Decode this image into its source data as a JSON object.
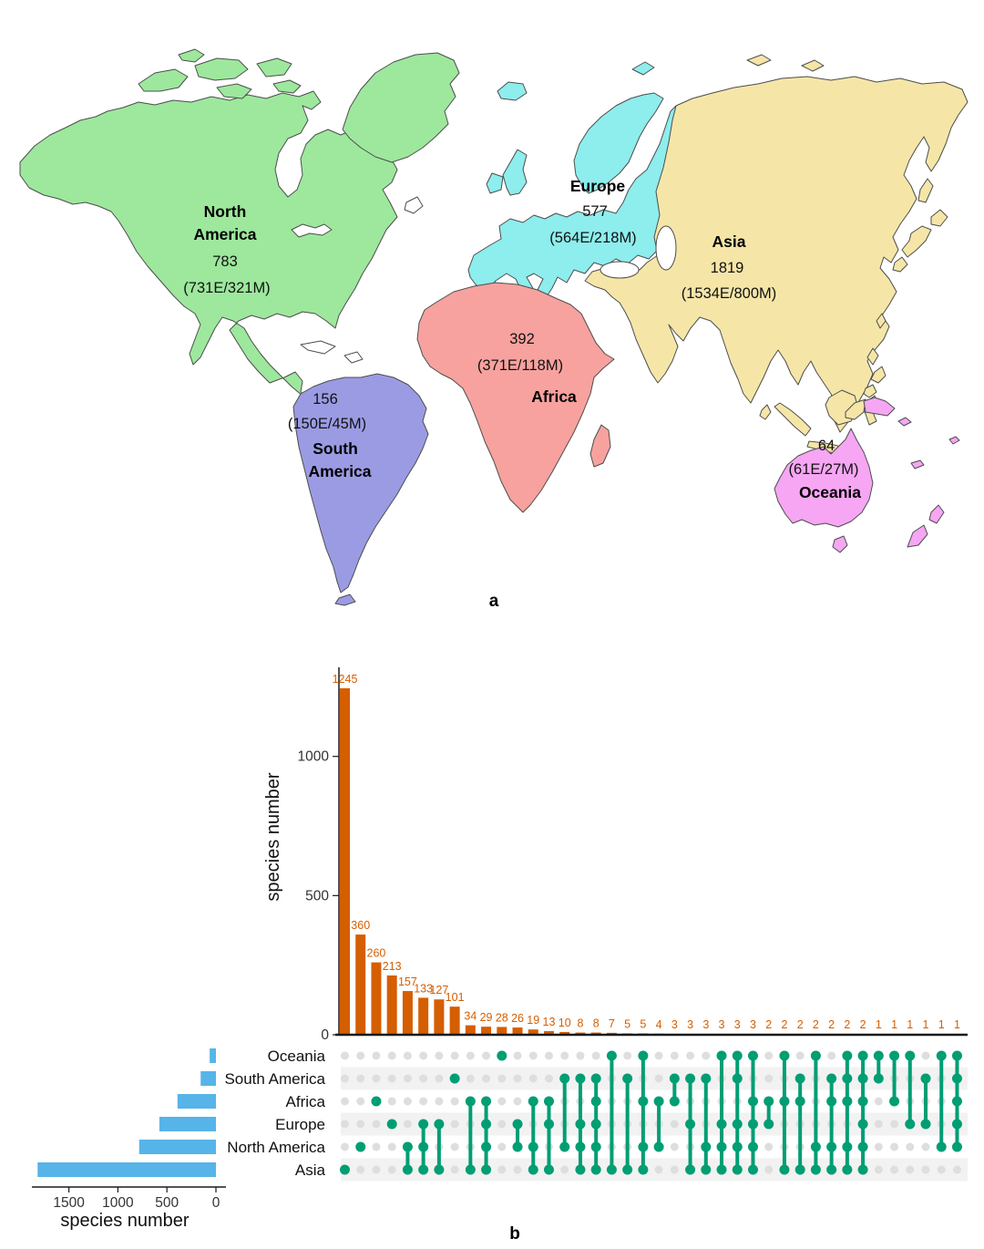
{
  "figure": {
    "panel_a_label": "a",
    "panel_b_label": "b"
  },
  "chart_data": [
    {
      "type": "map",
      "regions": [
        {
          "id": "north-america",
          "name": "North America",
          "name_lines": [
            "North",
            "America"
          ],
          "total": "783",
          "detail": "(731E/321M)",
          "color": "#9DE89D"
        },
        {
          "id": "south-america",
          "name": "South America",
          "name_lines": [
            "South",
            "America"
          ],
          "total": "156",
          "detail": "(150E/45M)",
          "color": "#9B9BE4"
        },
        {
          "id": "europe",
          "name": "Europe",
          "name_lines": [
            "Europe"
          ],
          "total": "577",
          "detail": "(564E/218M)",
          "color": "#8EEDED"
        },
        {
          "id": "africa",
          "name": "Africa",
          "name_lines": [
            "Africa"
          ],
          "total": "392",
          "detail": "(371E/118M)",
          "color": "#F7A29E"
        },
        {
          "id": "asia",
          "name": "Asia",
          "name_lines": [
            "Asia"
          ],
          "total": "1819",
          "detail": "(1534E/800M)",
          "color": "#F5E6A8"
        },
        {
          "id": "oceania",
          "name": "Oceania",
          "name_lines": [
            "Oceania"
          ],
          "total": "64",
          "detail": "(61E/27M)",
          "color": "#F6A6F3"
        }
      ]
    },
    {
      "type": "upset",
      "colors": {
        "bar_orange": "#D55E00",
        "bar_blue": "#56B4E9",
        "dot_green": "#009E73",
        "dot_gray": "#DEDEDE",
        "stripe": "#F2F2F2",
        "axis": "#1a1a1a",
        "tick_text": "#333333"
      },
      "set_order_top_to_bottom": [
        "Oceania",
        "South America",
        "Africa",
        "Europe",
        "North America",
        "Asia"
      ],
      "set_sizes": {
        "Oceania": 64,
        "South America": 156,
        "Africa": 392,
        "Europe": 577,
        "North America": 783,
        "Asia": 1819
      },
      "set_size_axis": {
        "label": "species number",
        "ticks": [
          1500,
          1000,
          500,
          0
        ]
      },
      "intersection_axis": {
        "label": "species number",
        "ticks": [
          0,
          500,
          1000
        ]
      },
      "intersections": [
        {
          "sets": [
            "Asia"
          ],
          "value": 1245
        },
        {
          "sets": [
            "North America"
          ],
          "value": 360
        },
        {
          "sets": [
            "Africa"
          ],
          "value": 260
        },
        {
          "sets": [
            "Europe"
          ],
          "value": 213
        },
        {
          "sets": [
            "North America",
            "Asia"
          ],
          "value": 157
        },
        {
          "sets": [
            "Europe",
            "North America",
            "Asia"
          ],
          "value": 133
        },
        {
          "sets": [
            "Europe",
            "Asia"
          ],
          "value": 127
        },
        {
          "sets": [
            "South America"
          ],
          "value": 101
        },
        {
          "sets": [
            "Africa",
            "Asia"
          ],
          "value": 34
        },
        {
          "sets": [
            "Africa",
            "Europe",
            "North America",
            "Asia"
          ],
          "value": 29
        },
        {
          "sets": [
            "Oceania"
          ],
          "value": 28
        },
        {
          "sets": [
            "Europe",
            "North America"
          ],
          "value": 26
        },
        {
          "sets": [
            "Africa",
            "North America",
            "Asia"
          ],
          "value": 19
        },
        {
          "sets": [
            "Africa",
            "Europe",
            "Asia"
          ],
          "value": 13
        },
        {
          "sets": [
            "South America",
            "North America"
          ],
          "value": 10
        },
        {
          "sets": [
            "South America",
            "Europe",
            "North America",
            "Asia"
          ],
          "value": 8
        },
        {
          "sets": [
            "South America",
            "Africa",
            "Europe",
            "North America",
            "Asia"
          ],
          "value": 8
        },
        {
          "sets": [
            "Oceania",
            "Asia"
          ],
          "value": 7
        },
        {
          "sets": [
            "South America",
            "Asia"
          ],
          "value": 5
        },
        {
          "sets": [
            "Oceania",
            "Africa",
            "North America",
            "Asia"
          ],
          "value": 5
        },
        {
          "sets": [
            "Africa",
            "North America"
          ],
          "value": 4
        },
        {
          "sets": [
            "South America",
            "Africa"
          ],
          "value": 3
        },
        {
          "sets": [
            "South America",
            "Europe",
            "Asia"
          ],
          "value": 3
        },
        {
          "sets": [
            "South America",
            "North America",
            "Asia"
          ],
          "value": 3
        },
        {
          "sets": [
            "Oceania",
            "Europe",
            "North America",
            "Asia"
          ],
          "value": 3
        },
        {
          "sets": [
            "Oceania",
            "South America",
            "Europe",
            "North America",
            "Asia"
          ],
          "value": 3
        },
        {
          "sets": [
            "Oceania",
            "Africa",
            "Europe",
            "North America",
            "Asia"
          ],
          "value": 3
        },
        {
          "sets": [
            "Africa",
            "Europe"
          ],
          "value": 2
        },
        {
          "sets": [
            "Oceania",
            "Africa",
            "Asia"
          ],
          "value": 2
        },
        {
          "sets": [
            "South America",
            "Africa",
            "Asia"
          ],
          "value": 2
        },
        {
          "sets": [
            "Oceania",
            "North America",
            "Asia"
          ],
          "value": 2
        },
        {
          "sets": [
            "South America",
            "Africa",
            "North America",
            "Asia"
          ],
          "value": 2
        },
        {
          "sets": [
            "Oceania",
            "South America",
            "Africa",
            "North America",
            "Asia"
          ],
          "value": 2
        },
        {
          "sets": [
            "Oceania",
            "South America",
            "Africa",
            "Europe",
            "North America",
            "Asia"
          ],
          "value": 2
        },
        {
          "sets": [
            "Oceania",
            "South America"
          ],
          "value": 1
        },
        {
          "sets": [
            "Oceania",
            "Africa"
          ],
          "value": 1
        },
        {
          "sets": [
            "Oceania",
            "Europe"
          ],
          "value": 1
        },
        {
          "sets": [
            "South America",
            "Europe"
          ],
          "value": 1
        },
        {
          "sets": [
            "Oceania",
            "North America"
          ],
          "value": 1
        },
        {
          "sets": [
            "Oceania",
            "South America",
            "Africa",
            "Europe",
            "North America"
          ],
          "value": 1
        }
      ]
    }
  ]
}
